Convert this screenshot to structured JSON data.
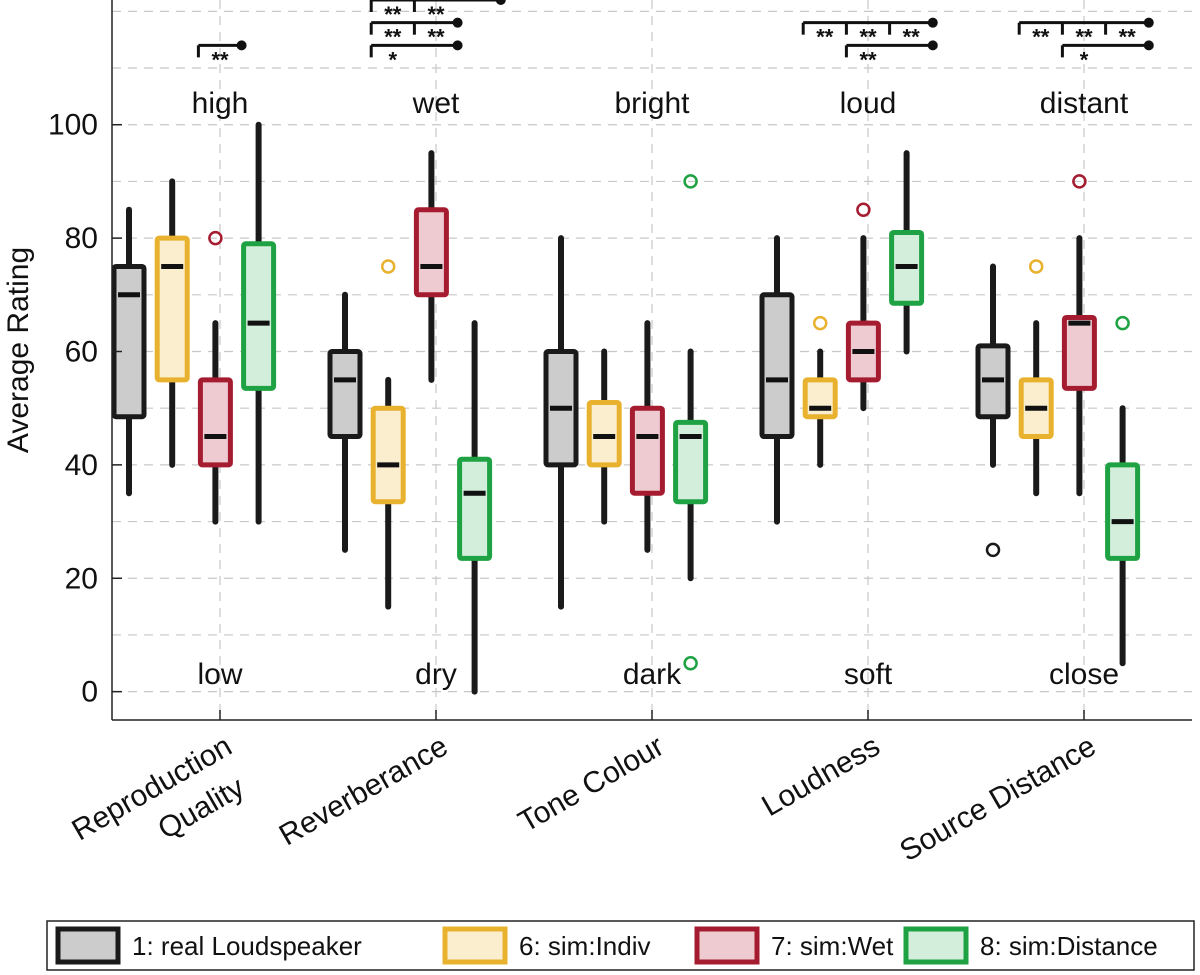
{
  "chart_data": {
    "type": "boxplot",
    "ylabel": "Average Rating",
    "ylim": [
      -5,
      122
    ],
    "yticks": [
      0,
      20,
      40,
      60,
      80,
      100
    ],
    "grid": true,
    "legend_position": "bottom",
    "categories": [
      {
        "lines": [
          "Reproduction",
          "Quality"
        ],
        "top": "high",
        "bottom": "low"
      },
      {
        "lines": [
          "Reverberance"
        ],
        "top": "wet",
        "bottom": "dry"
      },
      {
        "lines": [
          "Tone Colour"
        ],
        "top": "bright",
        "bottom": "dark"
      },
      {
        "lines": [
          "Loudness"
        ],
        "top": "loud",
        "bottom": "soft"
      },
      {
        "lines": [
          "Source Distance"
        ],
        "top": "distant",
        "bottom": "close"
      }
    ],
    "series": [
      {
        "name": "1: real Loudspeaker",
        "edge": "#1a1a1a",
        "fill": "#cccccc",
        "boxes": [
          {
            "whisker_low": 35,
            "q1": 48.5,
            "median": 70,
            "q3": 75,
            "whisker_high": 85,
            "outliers": []
          },
          {
            "whisker_low": 25,
            "q1": 45,
            "median": 55,
            "q3": 60,
            "whisker_high": 70,
            "outliers": []
          },
          {
            "whisker_low": 15,
            "q1": 40,
            "median": 50,
            "q3": 60,
            "whisker_high": 80,
            "outliers": []
          },
          {
            "whisker_low": 30,
            "q1": 45,
            "median": 55,
            "q3": 70,
            "whisker_high": 80,
            "outliers": []
          },
          {
            "whisker_low": 40,
            "q1": 48.5,
            "median": 55,
            "q3": 61,
            "whisker_high": 75,
            "outliers": [
              25
            ]
          }
        ]
      },
      {
        "name": "6: sim:Indiv",
        "edge": "#e8b12e",
        "fill": "#fbeece",
        "boxes": [
          {
            "whisker_low": 40,
            "q1": 55,
            "median": 75,
            "q3": 80,
            "whisker_high": 90,
            "outliers": []
          },
          {
            "whisker_low": 15,
            "q1": 33.5,
            "median": 40,
            "q3": 50,
            "whisker_high": 55,
            "outliers": [
              75
            ]
          },
          {
            "whisker_low": 30,
            "q1": 40,
            "median": 45,
            "q3": 51,
            "whisker_high": 60,
            "outliers": []
          },
          {
            "whisker_low": 40,
            "q1": 48.5,
            "median": 50,
            "q3": 55,
            "whisker_high": 60,
            "outliers": [
              65
            ]
          },
          {
            "whisker_low": 35,
            "q1": 45,
            "median": 50,
            "q3": 55,
            "whisker_high": 65,
            "outliers": [
              75
            ]
          }
        ]
      },
      {
        "name": "7: sim:Wet",
        "edge": "#a51c30",
        "fill": "#eecbd0",
        "boxes": [
          {
            "whisker_low": 30,
            "q1": 40,
            "median": 45,
            "q3": 55,
            "whisker_high": 65,
            "outliers": [
              80
            ]
          },
          {
            "whisker_low": 55,
            "q1": 70,
            "median": 75,
            "q3": 85,
            "whisker_high": 95,
            "outliers": []
          },
          {
            "whisker_low": 25,
            "q1": 35,
            "median": 45,
            "q3": 50,
            "whisker_high": 65,
            "outliers": []
          },
          {
            "whisker_low": 50,
            "q1": 55,
            "median": 60,
            "q3": 65,
            "whisker_high": 80,
            "outliers": [
              85
            ]
          },
          {
            "whisker_low": 35,
            "q1": 53.5,
            "median": 65,
            "q3": 66,
            "whisker_high": 80,
            "outliers": [
              90
            ]
          }
        ]
      },
      {
        "name": "8: sim:Distance",
        "edge": "#1fa243",
        "fill": "#d3eedb",
        "boxes": [
          {
            "whisker_low": 30,
            "q1": 53.5,
            "median": 65,
            "q3": 79,
            "whisker_high": 100,
            "outliers": []
          },
          {
            "whisker_low": 0,
            "q1": 23.5,
            "median": 35,
            "q3": 41,
            "whisker_high": 65,
            "outliers": []
          },
          {
            "whisker_low": 20,
            "q1": 33.5,
            "median": 45,
            "q3": 47.5,
            "whisker_high": 60,
            "outliers": [
              90,
              5
            ]
          },
          {
            "whisker_low": 60,
            "q1": 68.5,
            "median": 75,
            "q3": 81,
            "whisker_high": 95,
            "outliers": []
          },
          {
            "whisker_low": 5,
            "q1": 23.5,
            "median": 30,
            "q3": 40,
            "whisker_high": 50,
            "outliers": [
              65
            ]
          }
        ]
      }
    ],
    "significance": [
      {
        "cat": 0,
        "from": 1,
        "to": 2,
        "level": 114,
        "labels": [
          "**"
        ]
      },
      {
        "cat": 1,
        "from": 0,
        "to": 2,
        "level": 114,
        "labels": [
          "*"
        ]
      },
      {
        "cat": 1,
        "from": 0,
        "to": 2,
        "level": 118,
        "labels": [
          "**",
          "**"
        ]
      },
      {
        "cat": 1,
        "from": 0,
        "to": 3,
        "level": 122,
        "labels": [
          "**",
          "**"
        ]
      },
      {
        "cat": 3,
        "from": 1,
        "to": 3,
        "level": 114,
        "labels": [
          "**"
        ]
      },
      {
        "cat": 3,
        "from": 0,
        "to": 3,
        "level": 118,
        "labels": [
          "**",
          "**",
          "**"
        ]
      },
      {
        "cat": 4,
        "from": 1,
        "to": 3,
        "level": 114,
        "labels": [
          "*"
        ]
      },
      {
        "cat": 4,
        "from": 0,
        "to": 3,
        "level": 118,
        "labels": [
          "**",
          "**",
          "**"
        ]
      }
    ]
  }
}
